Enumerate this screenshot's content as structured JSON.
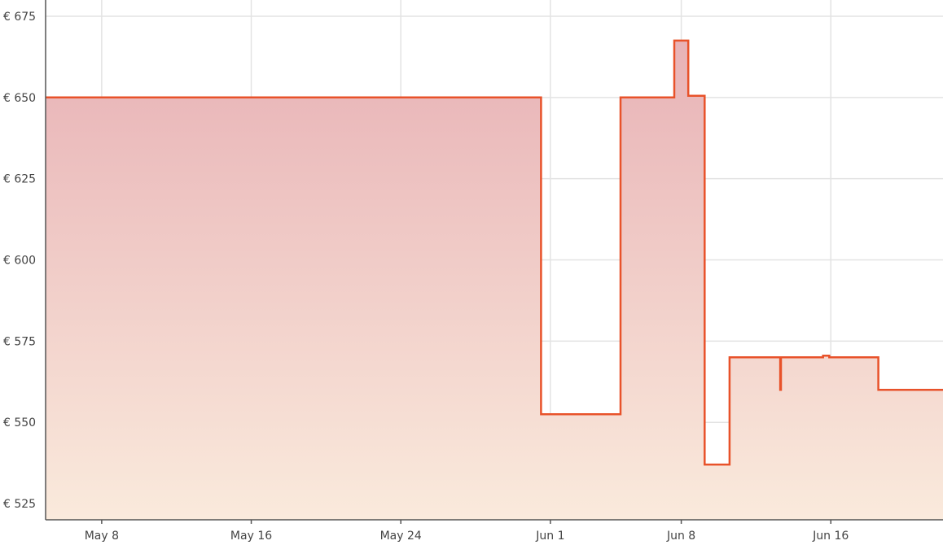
{
  "chart_data": {
    "type": "area",
    "title": "",
    "xlabel": "",
    "ylabel": "",
    "y_prefix": "€ ",
    "ylim": [
      520,
      680
    ],
    "xlim": [
      "2025-05-05",
      "2025-06-22"
    ],
    "y_ticks": [
      525,
      550,
      575,
      600,
      625,
      650,
      675
    ],
    "x_ticks": [
      {
        "date": "2025-05-08",
        "label": "May 8"
      },
      {
        "date": "2025-05-16",
        "label": "May 16"
      },
      {
        "date": "2025-05-24",
        "label": "May 24"
      },
      {
        "date": "2025-06-01",
        "label": "Jun 1"
      },
      {
        "date": "2025-06-08",
        "label": "Jun 8"
      },
      {
        "date": "2025-06-16",
        "label": "Jun 16"
      }
    ],
    "grid": true,
    "legend": "none",
    "interpolation": "step-after",
    "series": [
      {
        "color": "#e8522a",
        "fill_top": "#e8b2b6",
        "fill_bottom": "#faeadc",
        "points": [
          {
            "x": "2025-05-04T12:00",
            "y": 650
          },
          {
            "x": "2025-05-31T12:00",
            "y": 552.5
          },
          {
            "x": "2025-06-04T18:00",
            "y": 650
          },
          {
            "x": "2025-06-07T15:00",
            "y": 667.5
          },
          {
            "x": "2025-06-08T09:00",
            "y": 650.5
          },
          {
            "x": "2025-06-09T06:00",
            "y": 537
          },
          {
            "x": "2025-06-10T14:00",
            "y": 570
          },
          {
            "x": "2025-06-13T07:00",
            "y": 560
          },
          {
            "x": "2025-06-13T08:00",
            "y": 570
          },
          {
            "x": "2025-06-15T14:00",
            "y": 570.5
          },
          {
            "x": "2025-06-15T22:00",
            "y": 570
          },
          {
            "x": "2025-06-18T13:00",
            "y": 560
          },
          {
            "x": "2025-06-22T12:00",
            "y": 560
          }
        ]
      }
    ]
  }
}
